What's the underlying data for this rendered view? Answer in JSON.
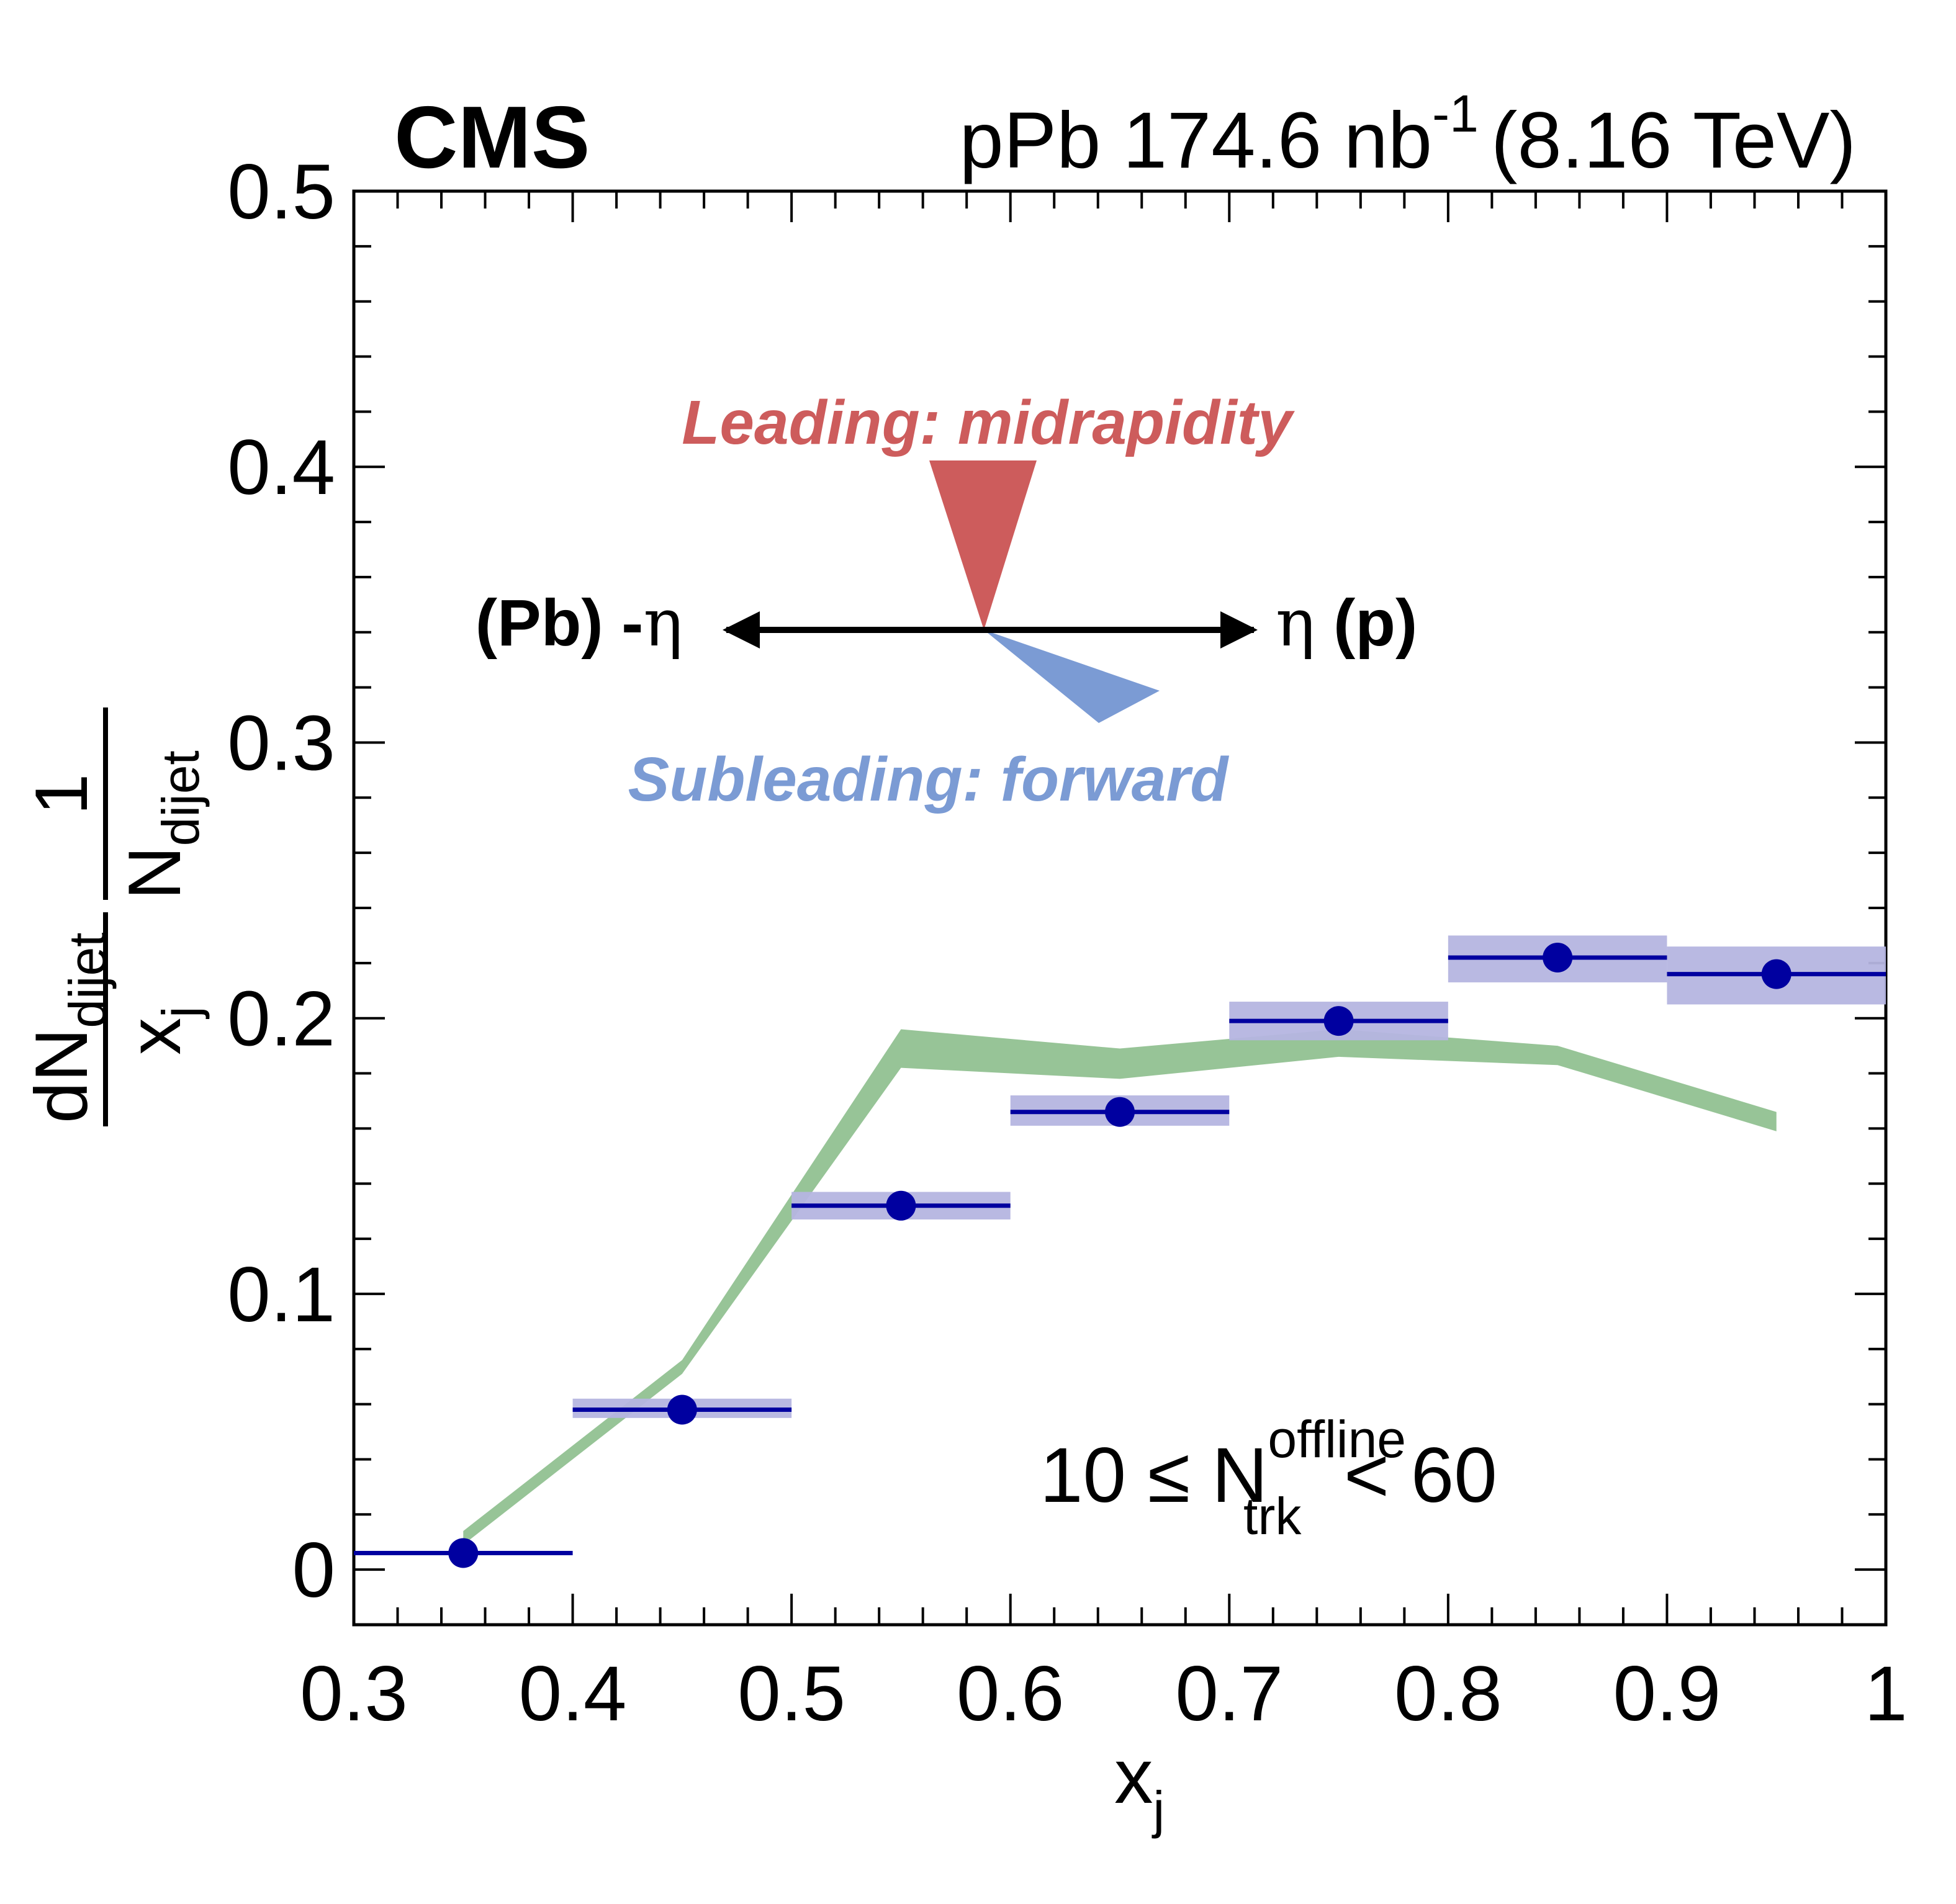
{
  "header": {
    "experiment": "CMS",
    "collision_system": "pPb 174.6 nb",
    "lumi_exponent": "-1",
    "energy": "(8.16 TeV)"
  },
  "cartoon": {
    "leading_label": "Leading: midrapidity",
    "subleading_label": "Subleading: forward",
    "left_label_text": "(Pb) -",
    "left_label_eta": "η",
    "right_label_eta": "η",
    "right_label_text": " (p)",
    "leading_color": "#cd5c5c",
    "subleading_color": "#7b9bd4"
  },
  "selection": {
    "prefix": "10 ≤ N",
    "superscript": "offline",
    "subscript": "trk",
    "suffix": " < 60"
  },
  "colors": {
    "data_marker": "#0000a0",
    "data_syst_box": "#b5b5e0",
    "model_band": "#97c497"
  },
  "chart_data": {
    "type": "scatter",
    "xlabel": "x",
    "xlabel_sub": "j",
    "ylabel_num": "dN",
    "ylabel_num_sub": "dijet",
    "ylabel_den": "x",
    "ylabel_den_sub": "j",
    "ylabel_pre_num": "1",
    "ylabel_pre_den": "N",
    "ylabel_pre_den_sub": "dijet",
    "xlim": [
      0.3,
      1.0
    ],
    "ylim": [
      -0.02,
      0.5
    ],
    "xticks": [
      "0.3",
      "0.4",
      "0.5",
      "0.6",
      "0.7",
      "0.8",
      "0.9",
      "1"
    ],
    "xtick_values": [
      0.3,
      0.4,
      0.5,
      0.6,
      0.7,
      0.8,
      0.9,
      1.0
    ],
    "yticks": [
      "0",
      "0.1",
      "0.2",
      "0.3",
      "0.4",
      "0.5"
    ],
    "ytick_values": [
      0,
      0.1,
      0.2,
      0.3,
      0.4,
      0.5
    ],
    "series": [
      {
        "kind": "data",
        "x": [
          0.35,
          0.45,
          0.55,
          0.65,
          0.75,
          0.85,
          0.95
        ],
        "x_halfwidth": 0.05,
        "y": [
          0.006,
          0.058,
          0.132,
          0.166,
          0.199,
          0.222,
          0.216
        ],
        "syst_low": [
          0.006,
          0.055,
          0.127,
          0.161,
          0.192,
          0.213,
          0.205
        ],
        "syst_high": [
          0.006,
          0.062,
          0.137,
          0.172,
          0.206,
          0.23,
          0.226
        ]
      },
      {
        "kind": "band",
        "x": [
          0.35,
          0.45,
          0.55,
          0.65,
          0.75,
          0.85,
          0.95
        ],
        "low": [
          0.009,
          0.071,
          0.182,
          0.178,
          0.186,
          0.183,
          0.159
        ],
        "high": [
          0.014,
          0.076,
          0.196,
          0.189,
          0.196,
          0.19,
          0.166
        ]
      }
    ]
  }
}
